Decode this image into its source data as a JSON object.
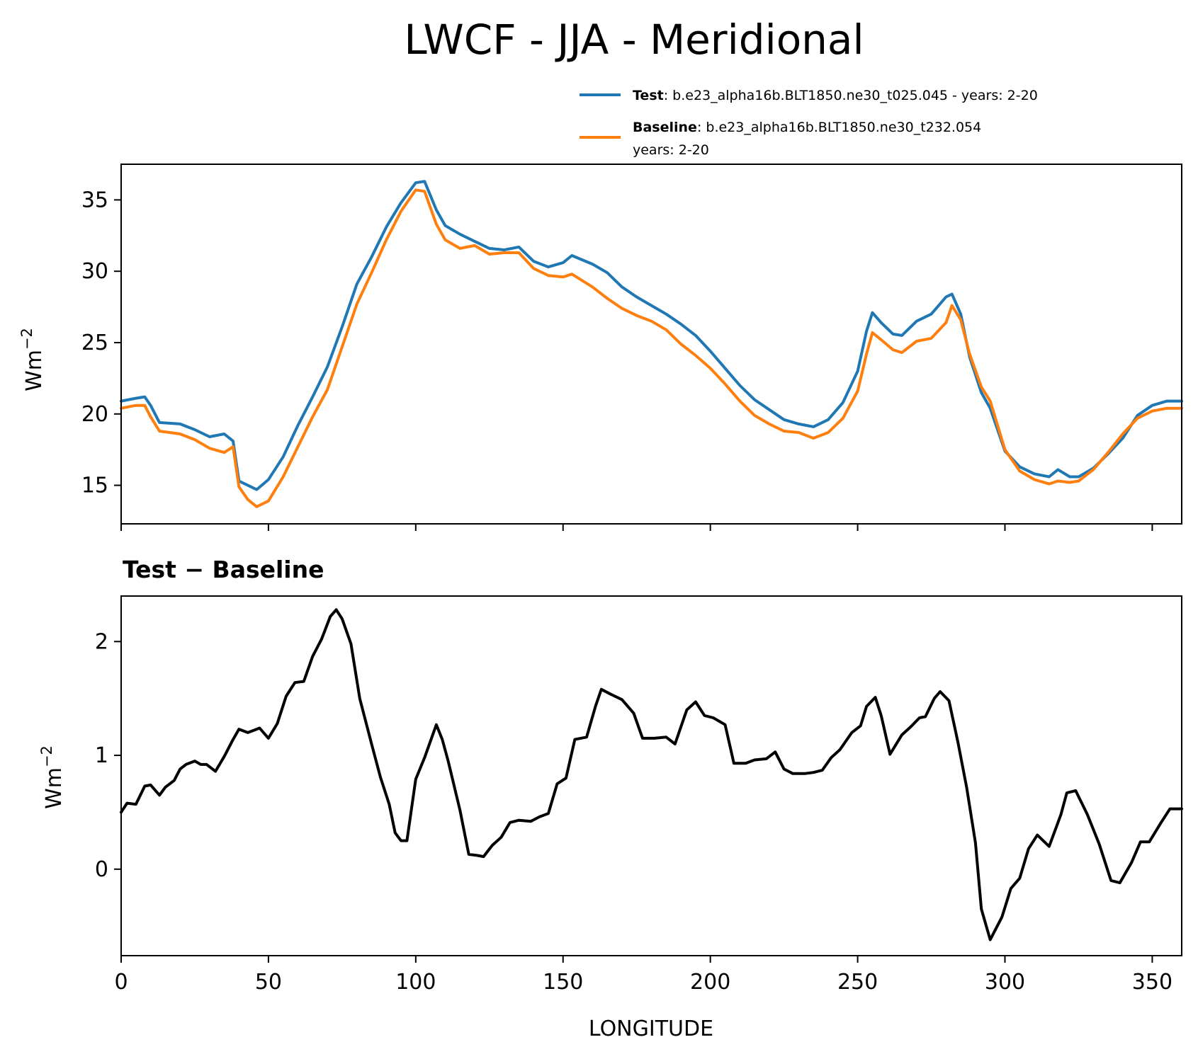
{
  "chart_data": {
    "type": "line",
    "title": "LWCF - JJA - Meridional",
    "legend": {
      "placement": "top-right",
      "entries": [
        {
          "series": "Test",
          "name": "Test",
          "description": ": b.e23_alpha16b.BLT1850.ne30_t025.045 - years: 2-20",
          "color": "#1f77b4"
        },
        {
          "series": "Baseline",
          "name": "Baseline",
          "description": ": b.e23_alpha16b.BLT1850.ne30_t232.054",
          "description_line2": "years: 2-20",
          "color": "#ff7f0e"
        }
      ]
    },
    "top_panel": {
      "ylabel": "Wm",
      "ylabel_exponent": "−2",
      "xlim": [
        0,
        360
      ],
      "ylim": [
        12.3,
        37.5
      ],
      "yticks": [
        15,
        20,
        25,
        30,
        35
      ],
      "ytick_labels": [
        "15",
        "20",
        "25",
        "30",
        "35"
      ],
      "x": [
        0,
        5,
        8,
        10,
        13,
        20,
        25,
        30,
        35,
        38,
        40,
        43,
        46,
        50,
        55,
        60,
        65,
        70,
        75,
        80,
        85,
        90,
        95,
        100,
        103,
        107,
        110,
        115,
        120,
        125,
        130,
        135,
        140,
        145,
        150,
        153,
        160,
        165,
        170,
        175,
        180,
        185,
        190,
        195,
        200,
        205,
        210,
        215,
        220,
        225,
        230,
        235,
        240,
        245,
        250,
        253,
        255,
        258,
        262,
        265,
        270,
        275,
        280,
        282,
        285,
        288,
        292,
        295,
        300,
        305,
        310,
        315,
        318,
        322,
        325,
        330,
        335,
        340,
        345,
        350,
        355,
        360
      ],
      "series": [
        {
          "name": "Test",
          "color": "#1f77b4",
          "values": [
            20.9,
            21.1,
            21.2,
            20.6,
            19.4,
            19.3,
            18.9,
            18.4,
            18.6,
            18.1,
            15.3,
            15.0,
            14.7,
            15.4,
            17.0,
            19.2,
            21.2,
            23.3,
            26.1,
            29.1,
            31.0,
            33.1,
            34.8,
            36.2,
            36.3,
            34.3,
            33.2,
            32.6,
            32.1,
            31.6,
            31.5,
            31.7,
            30.7,
            30.3,
            30.6,
            31.1,
            30.5,
            29.9,
            28.9,
            28.2,
            27.6,
            27.0,
            26.3,
            25.5,
            24.4,
            23.2,
            22.0,
            21.0,
            20.3,
            19.6,
            19.3,
            19.1,
            19.6,
            20.8,
            23.0,
            25.8,
            27.1,
            26.4,
            25.6,
            25.5,
            26.5,
            27.0,
            28.2,
            28.4,
            27.0,
            24.0,
            21.5,
            20.4,
            17.4,
            16.3,
            15.8,
            15.6,
            16.1,
            15.6,
            15.6,
            16.2,
            17.2,
            18.3,
            19.9,
            20.6,
            20.9,
            20.9
          ]
        },
        {
          "name": "Baseline",
          "color": "#ff7f0e",
          "values": [
            20.4,
            20.6,
            20.6,
            19.8,
            18.8,
            18.6,
            18.2,
            17.6,
            17.3,
            17.7,
            14.9,
            14.0,
            13.5,
            13.9,
            15.6,
            17.7,
            19.8,
            21.7,
            24.7,
            27.7,
            29.9,
            32.2,
            34.2,
            35.7,
            35.6,
            33.3,
            32.2,
            31.6,
            31.8,
            31.2,
            31.3,
            31.3,
            30.2,
            29.7,
            29.6,
            29.8,
            28.9,
            28.1,
            27.4,
            26.9,
            26.5,
            25.9,
            24.9,
            24.1,
            23.2,
            22.1,
            20.9,
            19.9,
            19.3,
            18.8,
            18.7,
            18.3,
            18.7,
            19.7,
            21.6,
            24.2,
            25.7,
            25.2,
            24.5,
            24.3,
            25.1,
            25.3,
            26.4,
            27.6,
            26.6,
            24.2,
            21.9,
            20.9,
            17.5,
            16.0,
            15.4,
            15.1,
            15.3,
            15.2,
            15.3,
            16.1,
            17.3,
            18.6,
            19.7,
            20.2,
            20.4,
            20.4
          ]
        }
      ]
    },
    "bottom_panel": {
      "title": "Test − Baseline",
      "ylabel": "Wm",
      "ylabel_exponent": "−2",
      "xlabel": "LONGITUDE",
      "xlim": [
        0,
        360
      ],
      "ylim": [
        -0.76,
        2.4
      ],
      "yticks": [
        0,
        1,
        2
      ],
      "ytick_labels": [
        "0",
        "1",
        "2"
      ],
      "xticks": [
        0,
        50,
        100,
        150,
        200,
        250,
        300,
        350
      ],
      "xtick_labels": [
        "0",
        "50",
        "100",
        "150",
        "200",
        "250",
        "300",
        "350"
      ],
      "series": [
        {
          "name": "Test − Baseline",
          "color": "#000000",
          "x": [
            0,
            2,
            5,
            8,
            10,
            13,
            15,
            18,
            20,
            22,
            25,
            27,
            29,
            32,
            35,
            38,
            40,
            43,
            45,
            47,
            50,
            53,
            56,
            59,
            62,
            65,
            68,
            71,
            73,
            75,
            78,
            81,
            85,
            88,
            91,
            93,
            95,
            97,
            100,
            103,
            107,
            109,
            111,
            115,
            118,
            121,
            123,
            126,
            129,
            132,
            135,
            139,
            142,
            145,
            148,
            151,
            154,
            158,
            161,
            163,
            166,
            170,
            174,
            177,
            181,
            185,
            188,
            192,
            195,
            198,
            201,
            205,
            208,
            212,
            215,
            219,
            222,
            225,
            228,
            232,
            235,
            238,
            241,
            244,
            248,
            251,
            253,
            256,
            258,
            261,
            265,
            268,
            271,
            273,
            276,
            278,
            281,
            284,
            287,
            290,
            292,
            295,
            299,
            302,
            305,
            308,
            311,
            315,
            319,
            321,
            324,
            328,
            332,
            336,
            339,
            343,
            346,
            349,
            353,
            356,
            360
          ],
          "values": [
            0.5,
            0.58,
            0.57,
            0.73,
            0.74,
            0.65,
            0.72,
            0.78,
            0.88,
            0.92,
            0.95,
            0.92,
            0.92,
            0.86,
            0.99,
            1.14,
            1.23,
            1.2,
            1.22,
            1.24,
            1.15,
            1.28,
            1.52,
            1.64,
            1.65,
            1.87,
            2.02,
            2.22,
            2.28,
            2.2,
            1.98,
            1.5,
            1.1,
            0.81,
            0.57,
            0.32,
            0.25,
            0.25,
            0.79,
            0.98,
            1.27,
            1.14,
            0.95,
            0.52,
            0.13,
            0.12,
            0.11,
            0.21,
            0.28,
            0.41,
            0.43,
            0.42,
            0.46,
            0.49,
            0.75,
            0.8,
            1.14,
            1.16,
            1.43,
            1.58,
            1.54,
            1.49,
            1.37,
            1.15,
            1.15,
            1.16,
            1.1,
            1.4,
            1.47,
            1.35,
            1.33,
            1.27,
            0.93,
            0.93,
            0.96,
            0.97,
            1.03,
            0.88,
            0.84,
            0.84,
            0.85,
            0.87,
            0.98,
            1.05,
            1.2,
            1.26,
            1.43,
            1.51,
            1.35,
            1.01,
            1.18,
            1.25,
            1.33,
            1.34,
            1.5,
            1.56,
            1.48,
            1.12,
            0.72,
            0.23,
            -0.35,
            -0.62,
            -0.42,
            -0.17,
            -0.08,
            0.18,
            0.3,
            0.2,
            0.48,
            0.67,
            0.69,
            0.48,
            0.22,
            -0.1,
            -0.12,
            0.06,
            0.24,
            0.24,
            0.41,
            0.53,
            0.53
          ]
        }
      ]
    }
  }
}
